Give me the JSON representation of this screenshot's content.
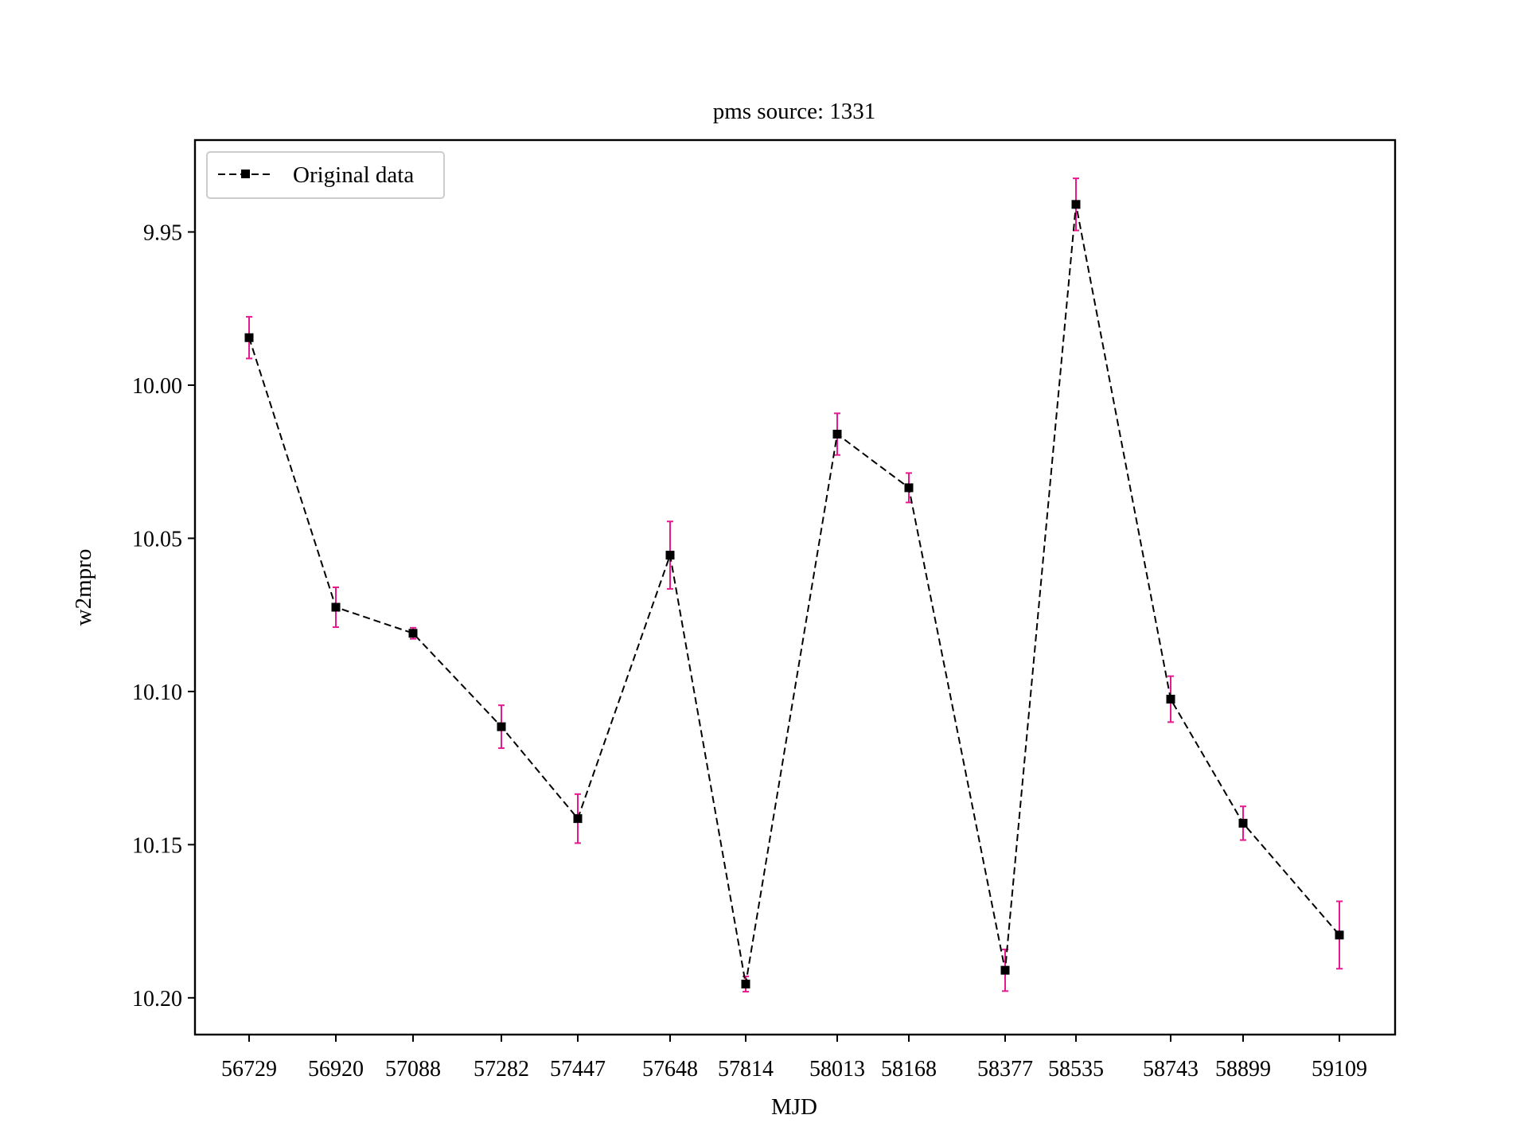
{
  "chart_data": {
    "type": "line",
    "title": "pms source: 1331",
    "xlabel": "MJD",
    "ylabel": "w2mpro",
    "y_inverted": true,
    "ylim": [
      9.92,
      10.212
    ],
    "yticks": [
      "9.95",
      "10.00",
      "10.05",
      "10.10",
      "10.15",
      "10.20"
    ],
    "x_categorical": true,
    "categories": [
      "56729",
      "56920",
      "57088",
      "57282",
      "57447",
      "57648",
      "57814",
      "58013",
      "58168",
      "58377",
      "58535",
      "58743",
      "58899",
      "59109"
    ],
    "x": [
      56729,
      56920,
      57088,
      57282,
      57447,
      57648,
      57814,
      58013,
      58168,
      58377,
      58535,
      58743,
      58899,
      59109
    ],
    "series": [
      {
        "name": "Original data",
        "values": [
          9.9845,
          10.0725,
          10.081,
          10.1115,
          10.1415,
          10.0555,
          10.1955,
          10.016,
          10.0335,
          10.191,
          9.941,
          10.1025,
          10.143,
          10.1795
        ],
        "errors": [
          0.0068,
          0.0065,
          0.0018,
          0.007,
          0.008,
          0.011,
          0.0025,
          0.0068,
          0.0048,
          0.0068,
          0.0085,
          0.0075,
          0.0055,
          0.011
        ],
        "line_color": "#000000",
        "line_style": "dashed",
        "marker": "square",
        "errorbar_color": "#e6198f"
      }
    ],
    "legend": {
      "position": "top-left",
      "entries": [
        "Original data"
      ]
    },
    "grid": false
  }
}
